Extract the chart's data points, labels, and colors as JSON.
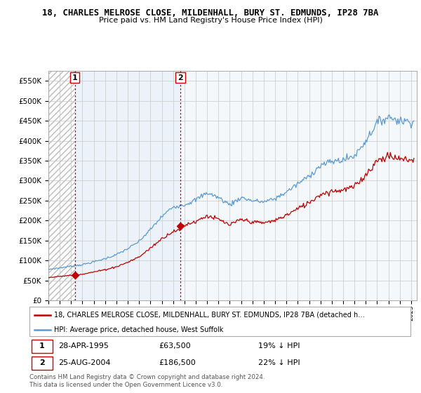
{
  "title": "18, CHARLES MELROSE CLOSE, MILDENHALL, BURY ST. EDMUNDS, IP28 7BA",
  "subtitle": "Price paid vs. HM Land Registry's House Price Index (HPI)",
  "legend_line1": "18, CHARLES MELROSE CLOSE, MILDENHALL, BURY ST. EDMUNDS, IP28 7BA (detached h…",
  "legend_line2": "HPI: Average price, detached house, West Suffolk",
  "sale1_date": "28-APR-1995",
  "sale1_price": 63500,
  "sale1_label": "19% ↓ HPI",
  "sale2_date": "25-AUG-2004",
  "sale2_price": 186500,
  "sale2_label": "22% ↓ HPI",
  "footer": "Contains HM Land Registry data © Crown copyright and database right 2024.\nThis data is licensed under the Open Government Licence v3.0.",
  "hpi_color": "#5b9bd5",
  "price_color": "#c00000",
  "vline_color": "#cc0000",
  "ylim": [
    0,
    575000
  ],
  "yticks": [
    0,
    50000,
    100000,
    150000,
    200000,
    250000,
    300000,
    350000,
    400000,
    450000,
    500000,
    550000
  ],
  "xlim_start": 1993.0,
  "xlim_end": 2025.5,
  "sale1_x": 1995.33,
  "sale2_x": 2004.64,
  "hpi_anchors": {
    "1993": 78000,
    "1994": 82000,
    "1995": 86000,
    "1996": 90000,
    "1997": 97000,
    "1998": 105000,
    "1999": 115000,
    "2000": 130000,
    "2001": 148000,
    "2002": 178000,
    "2003": 210000,
    "2004": 235000,
    "2005": 240000,
    "2006": 252000,
    "2007": 270000,
    "2008": 258000,
    "2009": 240000,
    "2010": 258000,
    "2011": 250000,
    "2012": 247000,
    "2013": 255000,
    "2014": 272000,
    "2015": 292000,
    "2016": 312000,
    "2017": 338000,
    "2018": 348000,
    "2019": 352000,
    "2020": 362000,
    "2021": 400000,
    "2022": 445000,
    "2023": 460000,
    "2024": 450000,
    "2025": 448000
  }
}
